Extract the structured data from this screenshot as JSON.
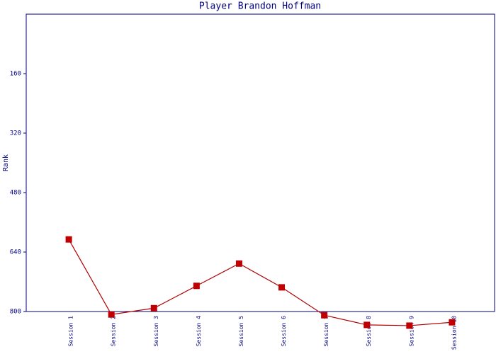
{
  "chart_data": {
    "type": "line",
    "title": "Player Brandon Hoffman",
    "y_label": "Rank",
    "categories": [
      "Session 1",
      "Session 2",
      "Session 3",
      "Session 4",
      "Session 5",
      "Session 6",
      "Session 7",
      "Session 8",
      "Session 9",
      "Session 10"
    ],
    "values": [
      606,
      808,
      791,
      731,
      671,
      735,
      810,
      836,
      838,
      829
    ],
    "color": "#b00000",
    "marker_color": "#c00000",
    "ylim": [
      0,
      800
    ],
    "y_inverted": true,
    "yticks": [
      160,
      320,
      480,
      640,
      800
    ]
  }
}
